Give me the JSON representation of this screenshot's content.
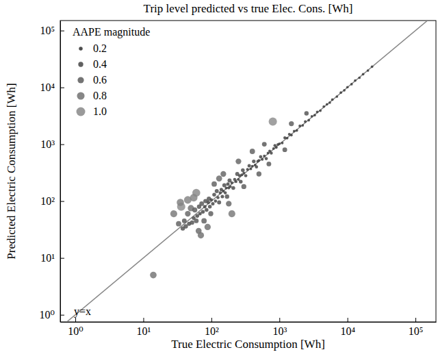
{
  "chart_data": {
    "type": "scatter",
    "title": "Trip level predicted vs true Elec. Cons. [Wh]",
    "x_label": "True Electric Consumption [Wh]",
    "y_label": "Predicted Electric Consumption [Wh]",
    "log": true,
    "xlim": [
      0.6,
      200000
    ],
    "ylim": [
      0.75,
      150000
    ],
    "xticks": [
      {
        "value": 1,
        "label": "10⁰"
      },
      {
        "value": 10,
        "label": "10¹"
      },
      {
        "value": 100,
        "label": "10²"
      },
      {
        "value": 1000,
        "label": "10³"
      },
      {
        "value": 10000,
        "label": "10⁴"
      },
      {
        "value": 100000,
        "label": "10⁵"
      }
    ],
    "yticks": [
      {
        "value": 1,
        "label": "10⁰"
      },
      {
        "value": 10,
        "label": "10¹"
      },
      {
        "value": 100,
        "label": "10²"
      },
      {
        "value": 1000,
        "label": "10³"
      },
      {
        "value": 10000,
        "label": "10⁴"
      },
      {
        "value": 100000,
        "label": "10⁵"
      }
    ],
    "reference_line": {
      "label": "y=x",
      "color": "#888888"
    },
    "size_legend": {
      "title": "AAPE magnitude",
      "values": [
        {
          "value": 0.2,
          "label": "0.2"
        },
        {
          "value": 0.4,
          "label": "0.4"
        },
        {
          "value": 0.6,
          "label": "0.6"
        },
        {
          "value": 0.8,
          "label": "0.8"
        },
        {
          "value": 1,
          "label": "1.0"
        }
      ]
    },
    "legend": "upper left",
    "series": [
      {
        "color": "#3a3a3a",
        "marker": "circle",
        "x": [
          14,
          33,
          36,
          38,
          40,
          42,
          45,
          47,
          50,
          52,
          55,
          57,
          60,
          62,
          65,
          66,
          68,
          70,
          72,
          75,
          78,
          80,
          82,
          85,
          88,
          90,
          92,
          95,
          98,
          45,
          35,
          60,
          55,
          28,
          100,
          105,
          110,
          115,
          120,
          125,
          130,
          135,
          140,
          145,
          150,
          155,
          160,
          165,
          170,
          175,
          180,
          185,
          190,
          200,
          210,
          220,
          230,
          240,
          250,
          260,
          270,
          280,
          290,
          300,
          320,
          340,
          360,
          380,
          400,
          420,
          440,
          460,
          480,
          500,
          530,
          560,
          600,
          640,
          680,
          720,
          760,
          800,
          820,
          860,
          900,
          950,
          130,
          200,
          150,
          250,
          300,
          400,
          500,
          180,
          600,
          110,
          700,
          1000,
          1100,
          1200,
          1300,
          1400,
          1500,
          1650,
          1800,
          2000,
          2200,
          2400,
          2700,
          3000,
          3300,
          3600,
          4000,
          4500,
          5000,
          5500,
          6000,
          7000,
          8000,
          9000,
          1500,
          1200,
          2500,
          10000,
          11500,
          13000,
          15000,
          17000,
          20000,
          23000
        ],
        "values": [
          5,
          40,
          80,
          33,
          45,
          36,
          60,
          40,
          75,
          42,
          50,
          70,
          45,
          55,
          30,
          80,
          60,
          25,
          90,
          65,
          45,
          80,
          100,
          70,
          35,
          95,
          110,
          80,
          60,
          105,
          95,
          140,
          115,
          60,
          105,
          90,
          130,
          100,
          150,
          115,
          95,
          140,
          160,
          120,
          150,
          190,
          140,
          170,
          120,
          200,
          170,
          230,
          180,
          210,
          170,
          240,
          220,
          300,
          240,
          280,
          220,
          290,
          350,
          310,
          280,
          360,
          420,
          370,
          410,
          500,
          430,
          400,
          500,
          520,
          600,
          540,
          620,
          560,
          700,
          760,
          700,
          2500,
          840,
          950,
          880,
          990,
          250,
          60,
          300,
          500,
          180,
          750,
          300,
          90,
          1000,
          200,
          450,
          1020,
          1050,
          1300,
          1280,
          1500,
          1450,
          1700,
          1750,
          2100,
          2150,
          2500,
          2650,
          3100,
          3250,
          3700,
          3900,
          4600,
          5050,
          5400,
          6100,
          6900,
          8100,
          8900,
          2300,
          800,
          3500,
          10100,
          11400,
          13200,
          14800,
          17100,
          19800,
          23200
        ],
        "sizes": [
          0.65,
          0.45,
          0.9,
          0.3,
          0.35,
          0.3,
          0.5,
          0.25,
          0.6,
          0.3,
          0.2,
          0.4,
          0.35,
          0.2,
          0.55,
          0.3,
          0.15,
          0.6,
          0.35,
          0.2,
          0.45,
          0.15,
          0.3,
          0.2,
          0.6,
          0.15,
          0.3,
          0.2,
          0.4,
          0.8,
          0.75,
          0.85,
          0.8,
          0.7,
          0.1,
          0.15,
          0.2,
          0.1,
          0.25,
          0.1,
          0.25,
          0.1,
          0.15,
          0.15,
          0.05,
          0.25,
          0.1,
          0.05,
          0.3,
          0.15,
          0.05,
          0.25,
          0.05,
          0.05,
          0.2,
          0.1,
          0.05,
          0.25,
          0.05,
          0.1,
          0.2,
          0.05,
          0.2,
          0.05,
          0.12,
          0.06,
          0.15,
          0.03,
          0.03,
          0.18,
          0.03,
          0.12,
          0.04,
          0.04,
          0.13,
          0.04,
          0.04,
          0.12,
          0.03,
          0.05,
          0.08,
          0.9,
          0.03,
          0.1,
          0.03,
          0.04,
          0.55,
          0.7,
          0.5,
          0.5,
          0.4,
          0.45,
          0.4,
          0.5,
          0.35,
          0.45,
          0.35,
          0.03,
          0.04,
          0.06,
          0.02,
          0.06,
          0.03,
          0.03,
          0.03,
          0.05,
          0.02,
          0.04,
          0.02,
          0.03,
          0.02,
          0.03,
          0.02,
          0.02,
          0.01,
          0.02,
          0.02,
          0.01,
          0.01,
          0.01,
          0.4,
          0.35,
          0.3,
          0.01,
          0.01,
          0.01,
          0.01,
          0.01,
          0.01,
          0.01
        ]
      }
    ]
  }
}
